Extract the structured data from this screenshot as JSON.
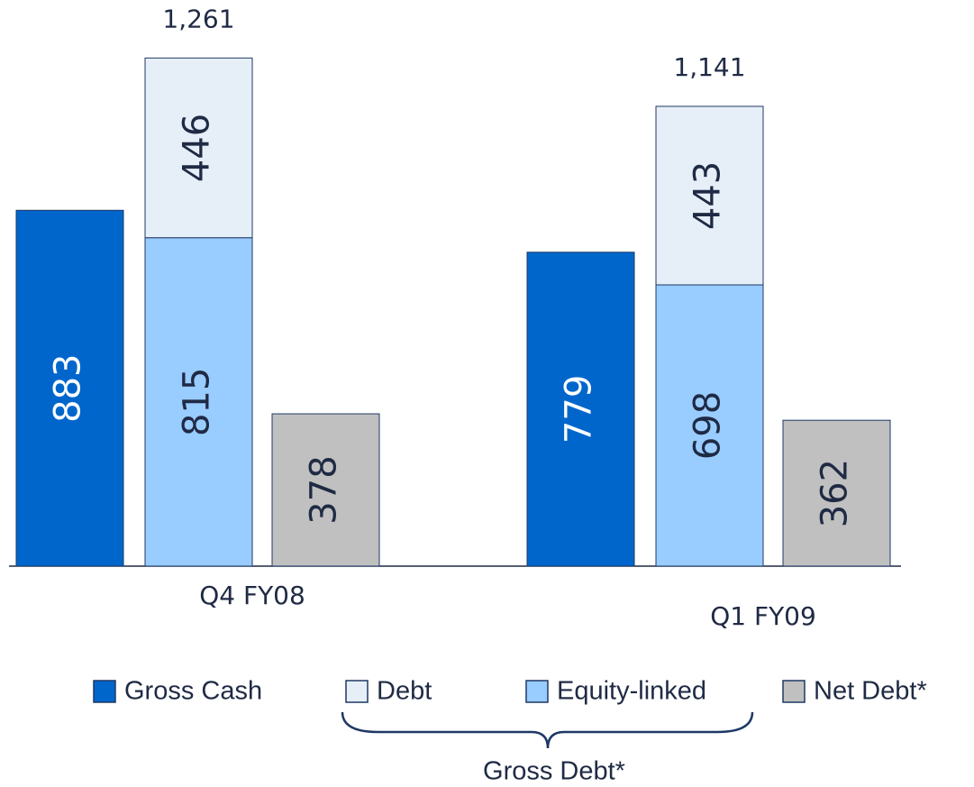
{
  "chart_data": {
    "type": "bar",
    "categories": [
      "Q4  FY08",
      "Q1  FY09"
    ],
    "series": [
      {
        "name": "Gross Cash",
        "color": "#0066cc",
        "values": [
          883,
          779
        ]
      },
      {
        "name": "Debt",
        "color": "#e6eef8",
        "values": [
          446,
          443
        ]
      },
      {
        "name": "Equity-linked",
        "color": "#99ccff",
        "values": [
          815,
          698
        ]
      },
      {
        "name": "Net Debt*",
        "color": "#c0c0c0",
        "values": [
          378,
          362
        ]
      }
    ],
    "totals": {
      "values": [
        1261,
        1141
      ],
      "value_labels": [
        "1,261",
        "1,141"
      ]
    },
    "annotation": "Gross Debt*"
  }
}
